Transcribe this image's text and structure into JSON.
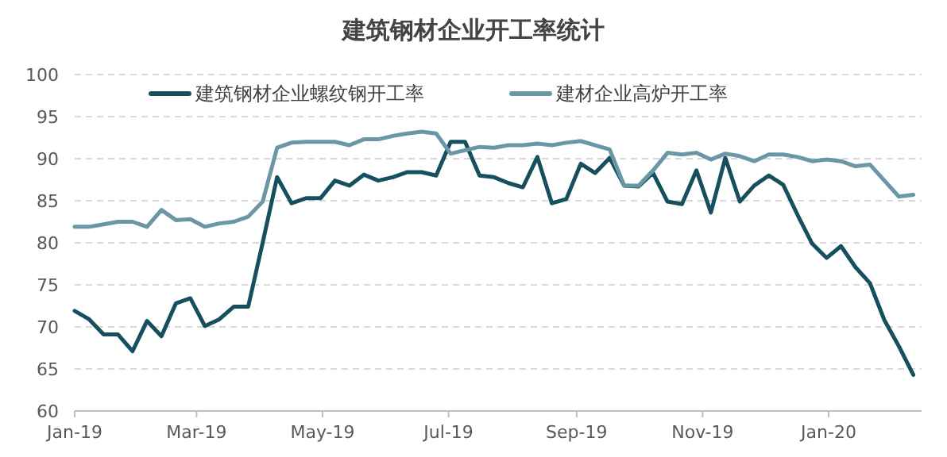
{
  "chart_data": {
    "type": "line",
    "title": "建筑钢材企业开工率统计",
    "x": [
      "2019-01-01",
      "2019-01-08",
      "2019-01-15",
      "2019-01-22",
      "2019-01-29",
      "2019-02-05",
      "2019-02-12",
      "2019-02-19",
      "2019-02-26",
      "2019-03-05",
      "2019-03-12",
      "2019-03-19",
      "2019-03-26",
      "2019-04-02",
      "2019-04-09",
      "2019-04-16",
      "2019-04-23",
      "2019-04-30",
      "2019-05-07",
      "2019-05-14",
      "2019-05-21",
      "2019-05-28",
      "2019-06-04",
      "2019-06-11",
      "2019-06-18",
      "2019-06-25",
      "2019-07-02",
      "2019-07-09",
      "2019-07-16",
      "2019-07-23",
      "2019-07-30",
      "2019-08-06",
      "2019-08-13",
      "2019-08-20",
      "2019-08-27",
      "2019-09-03",
      "2019-09-10",
      "2019-09-17",
      "2019-09-24",
      "2019-10-01",
      "2019-10-08",
      "2019-10-15",
      "2019-10-22",
      "2019-10-29",
      "2019-11-05",
      "2019-11-12",
      "2019-11-19",
      "2019-11-26",
      "2019-12-03",
      "2019-12-10",
      "2019-12-17",
      "2019-12-24",
      "2019-12-31",
      "2020-01-07",
      "2020-01-14",
      "2020-01-21",
      "2020-01-28",
      "2020-02-04",
      "2020-02-11"
    ],
    "series": [
      {
        "name": "建筑钢材企业螺纹钢开工率",
        "color": "#16505e",
        "values": [
          71.9,
          70.9,
          69.1,
          69.1,
          67.1,
          70.7,
          68.9,
          72.8,
          73.4,
          70.1,
          70.9,
          72.4,
          72.4,
          80.0,
          87.8,
          84.7,
          85.3,
          85.3,
          87.4,
          86.8,
          88.1,
          87.4,
          87.8,
          88.4,
          88.4,
          88.0,
          92.0,
          92.0,
          88.0,
          87.8,
          87.1,
          86.6,
          90.2,
          84.7,
          85.2,
          89.4,
          88.3,
          90.1,
          86.8,
          86.7,
          88.3,
          84.9,
          84.6,
          88.6,
          83.6,
          90.1,
          84.9,
          86.8,
          88.0,
          86.9,
          83.3,
          79.9,
          78.2,
          79.6,
          77.1,
          75.2,
          70.8,
          67.7,
          64.3
        ]
      },
      {
        "name": "建材企业高炉开工率",
        "color": "#6a97a3",
        "values": [
          81.9,
          81.9,
          82.2,
          82.5,
          82.5,
          81.9,
          83.9,
          82.7,
          82.8,
          81.9,
          82.3,
          82.5,
          83.1,
          84.9,
          91.3,
          91.9,
          92.0,
          92.0,
          92.0,
          91.6,
          92.3,
          92.3,
          92.7,
          93.0,
          93.2,
          93.0,
          90.6,
          91.0,
          91.4,
          91.3,
          91.6,
          91.6,
          91.8,
          91.6,
          91.9,
          92.1,
          91.6,
          91.1,
          86.8,
          86.8,
          88.6,
          90.7,
          90.5,
          90.7,
          89.9,
          90.6,
          90.3,
          89.7,
          90.5,
          90.5,
          90.2,
          89.7,
          89.9,
          89.7,
          89.1,
          89.3,
          87.4,
          85.5,
          85.7
        ]
      }
    ],
    "xlim": [
      "2019-01-01",
      "2020-02-15"
    ],
    "xticks": [
      {
        "value": "2019-01-01",
        "label": "Jan-19"
      },
      {
        "value": "2019-03-01",
        "label": "Mar-19"
      },
      {
        "value": "2019-05-01",
        "label": "May-19"
      },
      {
        "value": "2019-07-01",
        "label": "Jul-19"
      },
      {
        "value": "2019-09-01",
        "label": "Sep-19"
      },
      {
        "value": "2019-11-01",
        "label": "Nov-19"
      },
      {
        "value": "2020-01-01",
        "label": "Jan-20"
      }
    ],
    "ylim": [
      60,
      100
    ],
    "yticks": [
      60,
      65,
      70,
      75,
      80,
      85,
      90,
      95,
      100
    ],
    "grid": "y",
    "legend": "top"
  }
}
